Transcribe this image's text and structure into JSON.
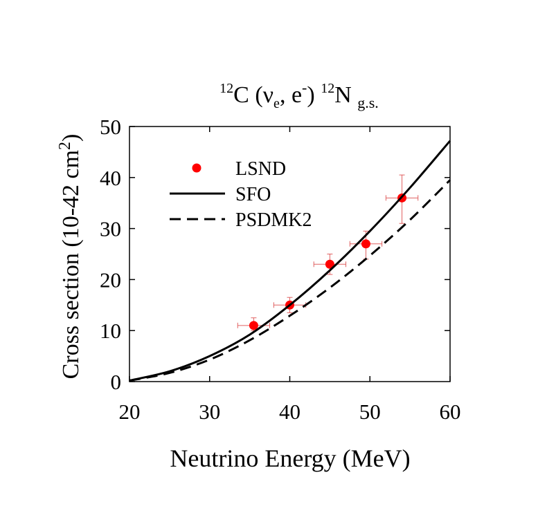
{
  "chart_data": {
    "type": "scatter",
    "title": {
      "target_mass": "12",
      "target": "C (",
      "nu": "ν",
      "nu_sub": "e",
      "mid": ", e",
      "minus": "-",
      "close": ") ",
      "product_mass": "12",
      "product": "N ",
      "state": "g.s."
    },
    "xlabel": "Neutrino Energy (MeV)",
    "ylabel": {
      "text": "Cross section (10-42 cm",
      "sup": "2",
      "close": ")"
    },
    "xlim": [
      20,
      60
    ],
    "ylim": [
      0,
      50
    ],
    "xticks": [
      20,
      30,
      40,
      50,
      60
    ],
    "yticks": [
      0,
      10,
      20,
      30,
      40,
      50
    ],
    "grid": false,
    "legend_position": "upper-left",
    "series": [
      {
        "name": "LSND",
        "kind": "points",
        "color": "#ff0000",
        "points": [
          {
            "x": 35.5,
            "y": 11,
            "xerr": 2.0,
            "yerr_low": 1.0,
            "yerr_high": 1.5
          },
          {
            "x": 40,
            "y": 15,
            "xerr": 2.0,
            "yerr_low": 1.5,
            "yerr_high": 1.5
          },
          {
            "x": 45,
            "y": 23,
            "xerr": 2.0,
            "yerr_low": 2.0,
            "yerr_high": 2.0
          },
          {
            "x": 49.5,
            "y": 27,
            "xerr": 2.0,
            "yerr_low": 3.0,
            "yerr_high": 2.5
          },
          {
            "x": 54,
            "y": 36,
            "xerr": 2.0,
            "yerr_low": 5.0,
            "yerr_high": 4.5
          }
        ]
      },
      {
        "name": "SFO",
        "kind": "line",
        "dash": "solid",
        "color": "#000000",
        "x": [
          20,
          25,
          30,
          35,
          40,
          45,
          50,
          55,
          60
        ],
        "y": [
          0.2,
          2.0,
          5.0,
          9.2,
          15.0,
          21.8,
          29.5,
          38.0,
          47.2
        ]
      },
      {
        "name": "PSDMK2",
        "kind": "line",
        "dash": "dashed",
        "color": "#000000",
        "x": [
          20,
          25,
          30,
          35,
          40,
          45,
          50,
          55,
          60
        ],
        "y": [
          0.2,
          1.7,
          4.3,
          8.1,
          12.9,
          18.4,
          24.7,
          31.7,
          39.5
        ]
      }
    ]
  }
}
